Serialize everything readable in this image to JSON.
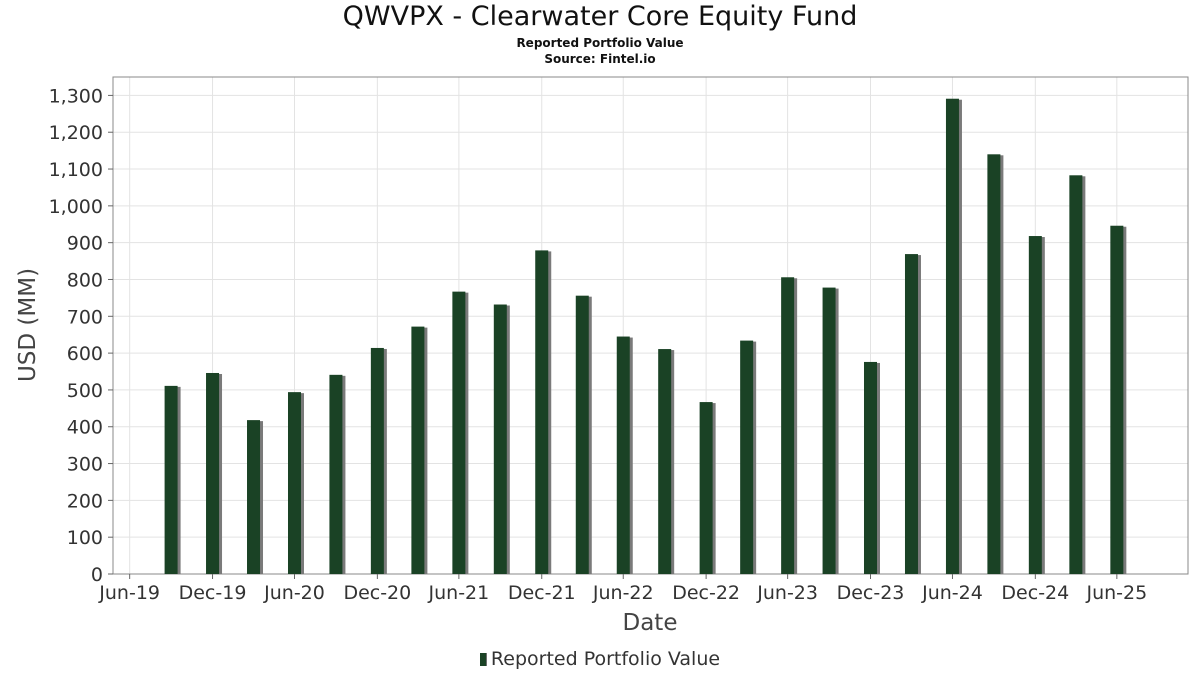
{
  "header": {
    "title": "QWVPX - Clearwater Core Equity Fund",
    "subtitle": "Reported Portfolio Value",
    "source": "Source: Fintel.io"
  },
  "legend": {
    "label": "Reported Portfolio Value"
  },
  "colors": {
    "bar": "#1a4225",
    "bar_shadow": "#7a7a7a",
    "grid": "#e3e3e3",
    "frame": "#888888"
  },
  "chart_data": {
    "type": "bar",
    "title": "QWVPX - Clearwater Core Equity Fund",
    "subtitle": "Reported Portfolio Value",
    "xlabel": "Date",
    "ylabel": "USD (MM)",
    "ylim": [
      0,
      1350
    ],
    "yticks": [
      0,
      100,
      200,
      300,
      400,
      500,
      600,
      700,
      800,
      900,
      1000,
      1100,
      1200,
      1300
    ],
    "ytick_labels": [
      "0",
      "100",
      "200",
      "300",
      "400",
      "500",
      "600",
      "700",
      "800",
      "900",
      "1,000",
      "1,100",
      "1,200",
      "1,300"
    ],
    "xlim": [
      "2019-05-24",
      "2025-12-05"
    ],
    "xticks": [
      "2019-06-30",
      "2019-12-31",
      "2020-06-30",
      "2020-12-31",
      "2021-06-30",
      "2021-12-31",
      "2022-06-30",
      "2022-12-31",
      "2023-06-30",
      "2023-12-31",
      "2024-06-30",
      "2024-12-31",
      "2025-06-30"
    ],
    "xtick_labels": [
      "Jun-19",
      "Dec-19",
      "Jun-20",
      "Dec-20",
      "Jun-21",
      "Dec-21",
      "Jun-22",
      "Dec-22",
      "Jun-23",
      "Dec-23",
      "Jun-24",
      "Dec-24",
      "Jun-25"
    ],
    "grid": true,
    "legend_position": "bottom",
    "series": [
      {
        "name": "Reported Portfolio Value",
        "x": [
          "2019-09-30",
          "2019-12-31",
          "2020-03-31",
          "2020-06-30",
          "2020-09-30",
          "2020-12-31",
          "2021-03-31",
          "2021-06-30",
          "2021-09-30",
          "2021-12-31",
          "2022-03-31",
          "2022-06-30",
          "2022-09-30",
          "2022-12-31",
          "2023-03-31",
          "2023-06-30",
          "2023-09-30",
          "2023-12-31",
          "2024-03-31",
          "2024-06-30",
          "2024-09-30",
          "2024-12-31",
          "2025-03-31",
          "2025-06-30"
        ],
        "values": [
          511,
          546,
          418,
          494,
          541,
          614,
          672,
          767,
          732,
          879,
          756,
          645,
          611,
          467,
          634,
          806,
          778,
          576,
          869,
          1291,
          1140,
          918,
          1083,
          946
        ]
      }
    ]
  }
}
